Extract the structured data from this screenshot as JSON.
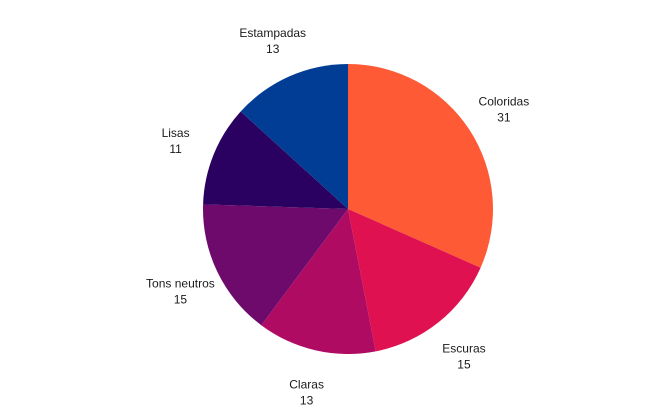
{
  "chart_data": {
    "type": "pie",
    "title": "",
    "categories": [
      "Coloridas",
      "Escuras",
      "Claras",
      "Tons neutros",
      "Lisas",
      "Estampadas"
    ],
    "values": [
      31,
      15,
      13,
      15,
      11,
      13
    ],
    "value_labels": [
      "31",
      "15",
      "13",
      "15",
      "11",
      "13"
    ],
    "colors": [
      "#FF5A36",
      "#E01150",
      "#B00B62",
      "#6E0A6B",
      "#2A0060",
      "#023D95"
    ],
    "start_angle_deg": 0,
    "direction": "clockwise",
    "legend": "none",
    "labels_outside": true
  }
}
